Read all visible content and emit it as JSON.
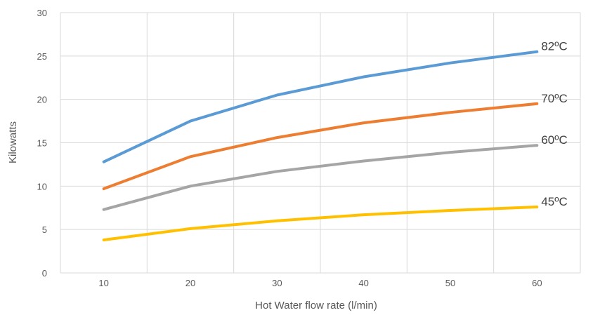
{
  "chart_data": {
    "type": "line",
    "title": "",
    "xlabel": "Hot Water flow rate (l/min)",
    "ylabel": "Kilowatts",
    "x": [
      10,
      20,
      30,
      40,
      50,
      60
    ],
    "xlim": [
      5,
      65
    ],
    "ylim": [
      0,
      30
    ],
    "x_ticks": [
      10,
      20,
      30,
      40,
      50,
      60
    ],
    "y_ticks": [
      0,
      5,
      10,
      15,
      20,
      25,
      30
    ],
    "grid": true,
    "legend": "none",
    "series": [
      {
        "name": "82ºC",
        "color": "#5b9bd5",
        "values": [
          12.8,
          17.5,
          20.5,
          22.6,
          24.2,
          25.5
        ]
      },
      {
        "name": "70ºC",
        "color": "#ed7d31",
        "values": [
          9.7,
          13.4,
          15.6,
          17.3,
          18.5,
          19.5
        ]
      },
      {
        "name": "60ºC",
        "color": "#a5a5a5",
        "values": [
          7.3,
          10.0,
          11.7,
          12.9,
          13.9,
          14.7
        ]
      },
      {
        "name": "45ºC",
        "color": "#ffc000",
        "values": [
          3.8,
          5.1,
          6.0,
          6.7,
          7.2,
          7.6
        ]
      }
    ]
  }
}
